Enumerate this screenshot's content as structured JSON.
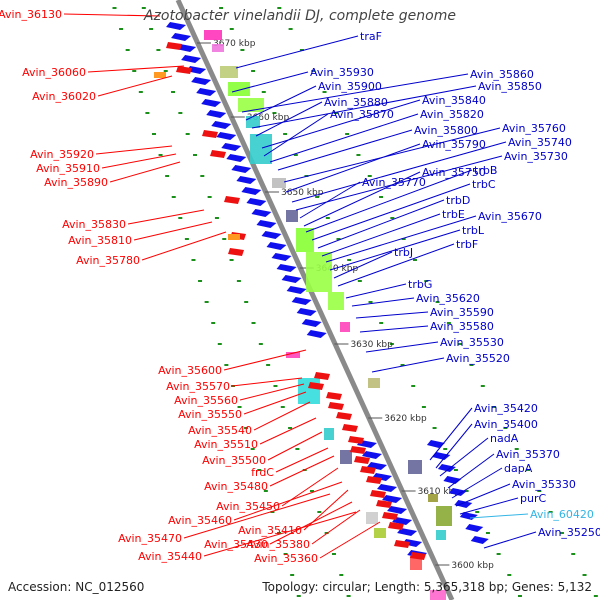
{
  "map": {
    "title": "Azotobacter vinelandii DJ, complete genome",
    "accession_text": "Accession: NC_012560",
    "topology_text": "Topology: circular; Length: 5,365,318 bp; Genes: 5,132",
    "colors": {
      "left_label": "#ff0000",
      "right_label": "#0000cc",
      "highlight_label": "#33b5e5",
      "backbone": "#8a8a8a",
      "tick_dots": "#1a8f1a",
      "feature_blue": "#1010ee",
      "feature_red": "#ee1111"
    },
    "kbp_ticks": [
      "3670 kbp",
      "3660 kbp",
      "3650 kbp",
      "3640 kbp",
      "3630 kbp",
      "3620 kbp",
      "3610 kbp",
      "3600 kbp"
    ],
    "left_labels": [
      "Avin_36130",
      "Avin_36060",
      "Avin_36020",
      "Avin_35920",
      "Avin_35910",
      "Avin_35890",
      "Avin_35830",
      "Avin_35810",
      "Avin_35780",
      "Avin_35600",
      "Avin_35570",
      "Avin_35560",
      "Avin_35550",
      "Avin_35540",
      "Avin_35510",
      "Avin_35500",
      "frdC",
      "Avin_35480",
      "Avin_35450",
      "Avin_35460",
      "Avin_35410",
      "Avin_35470",
      "Avin_35430",
      "Avin_35380",
      "Avin_35440",
      "Avin_35360"
    ],
    "right_labels": [
      "traF",
      "Avin_35930",
      "Avin_35860",
      "Avin_35900",
      "Avin_35850",
      "Avin_35880",
      "Avin_35840",
      "Avin_35870",
      "Avin_35820",
      "Avin_35800",
      "Avin_35760",
      "Avin_35790",
      "Avin_35740",
      "Avin_35730",
      "Avin_35770",
      "Avin_35750",
      "trbB",
      "trbC",
      "trbD",
      "trbE",
      "Avin_35670",
      "trbL",
      "trbJ",
      "trbF",
      "trbG",
      "Avin_35620",
      "Avin_35590",
      "Avin_35580",
      "Avin_35530",
      "Avin_35520",
      "Avin_35420",
      "Avin_35400",
      "nadA",
      "Avin_35370",
      "dapA",
      "Avin_35330",
      "purC",
      "Avin_60420",
      "Avin_35250"
    ]
  }
}
